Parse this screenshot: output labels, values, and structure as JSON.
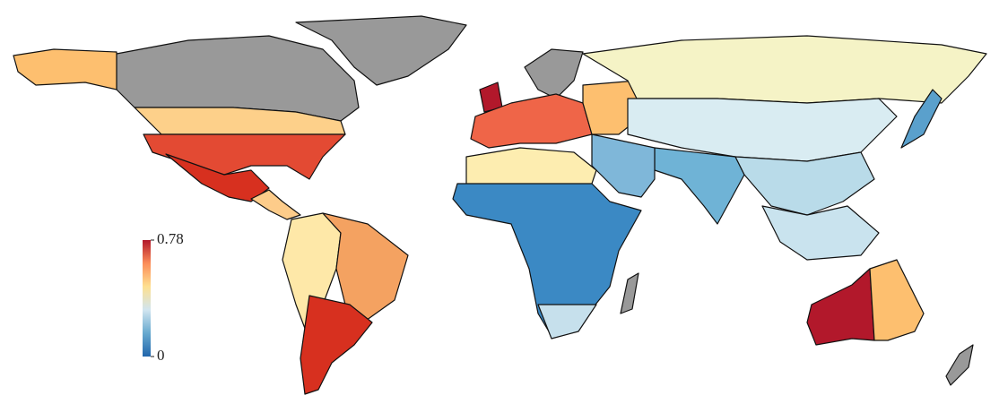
{
  "chart_data": {
    "type": "choropleth",
    "colorbar": {
      "lim": [
        0,
        0.78
      ],
      "ticks": [
        0,
        0.78
      ],
      "colors": [
        "#2166ac",
        "#67a9cf",
        "#d1e5f0",
        "#fee090",
        "#fc8d59",
        "#b2182b"
      ]
    }
  }
}
